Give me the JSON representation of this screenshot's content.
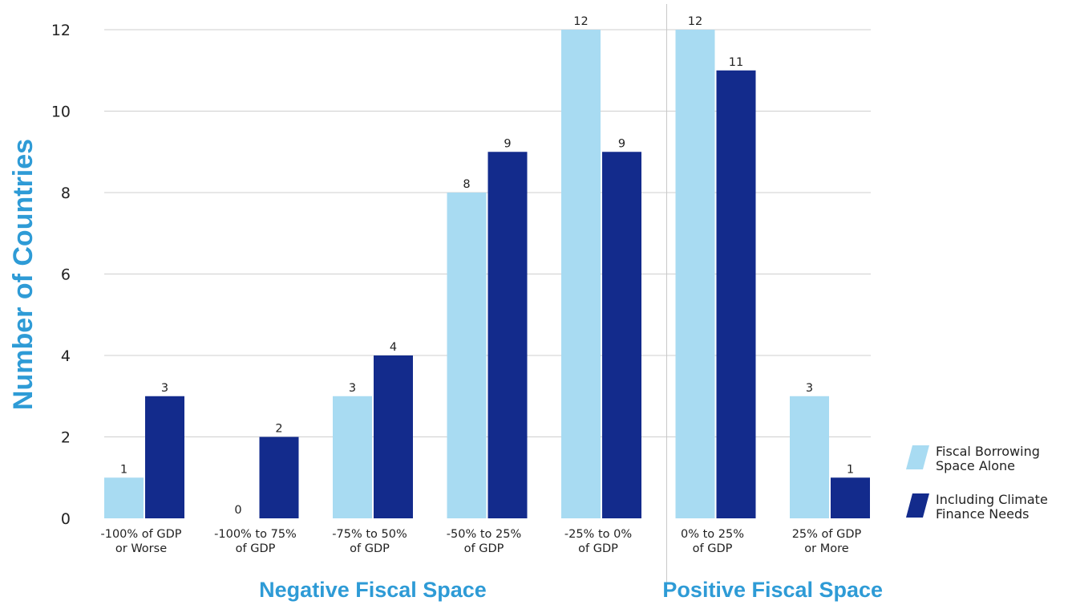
{
  "chart_data": {
    "type": "bar",
    "ylabel": "Number of Countries",
    "ylim": [
      0,
      12
    ],
    "yticks": [
      0,
      2,
      4,
      6,
      8,
      10,
      12
    ],
    "grid": true,
    "legend_position": "bottom-right",
    "categories": [
      [
        "-100% of GDP",
        "or Worse"
      ],
      [
        "-100% to 75%",
        "of GDP"
      ],
      [
        "-75% to 50%",
        "of GDP"
      ],
      [
        "-50% to 25%",
        "of GDP"
      ],
      [
        "-25% to 0%",
        "of GDP"
      ],
      [
        "0% to 25%",
        "of GDP"
      ],
      [
        "25% of GDP",
        "or More"
      ]
    ],
    "series": [
      {
        "name": [
          "Fiscal Borrowing",
          "Space Alone"
        ],
        "color": "#a8dbf2",
        "values": [
          1,
          0,
          3,
          8,
          12,
          12,
          3
        ]
      },
      {
        "name": [
          "Including Climate",
          "Finance Needs"
        ],
        "color": "#132b8c",
        "values": [
          3,
          2,
          4,
          9,
          9,
          11,
          1
        ]
      }
    ],
    "groups": [
      {
        "label": "Negative Fiscal Space",
        "categories": [
          0,
          4
        ]
      },
      {
        "label": "Positive Fiscal Space",
        "categories": [
          5,
          6
        ]
      }
    ]
  }
}
